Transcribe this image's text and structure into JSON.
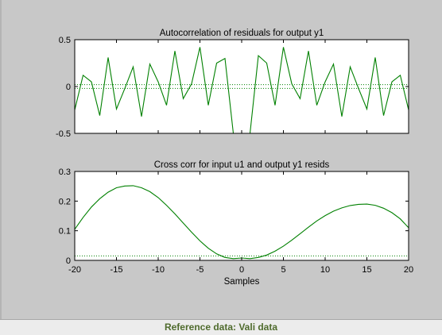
{
  "footer": {
    "reference_label": "Reference data:  Vali data"
  },
  "colors": {
    "figure_bg": "#c8c8c8",
    "axes_bg": "#ffffff",
    "series": "#008000",
    "confidence": "#008000",
    "footer_text": "#4f6b2d"
  },
  "chart_data": [
    {
      "type": "line",
      "title": "Autocorrelation of residuals for output y1",
      "xlabel": "",
      "ylabel": "",
      "xlim": [
        -20,
        20
      ],
      "ylim": [
        -0.5,
        0.5
      ],
      "yticks": [
        -0.5,
        0,
        0.5
      ],
      "yticklabels": [
        "-0.5",
        "0",
        "0.5"
      ],
      "show_xticklabels": false,
      "grid": false,
      "x": [
        -20,
        -19,
        -18,
        -17,
        -16,
        -15,
        -14,
        -13,
        -12,
        -11,
        -10,
        -9,
        -8,
        -7,
        -6,
        -5,
        -4,
        -3,
        -2,
        -1,
        0,
        1,
        2,
        3,
        4,
        5,
        6,
        7,
        8,
        9,
        10,
        11,
        12,
        13,
        14,
        15,
        16,
        17,
        18,
        19,
        20
      ],
      "series": [
        {
          "values": [
            -0.25,
            0.12,
            0.05,
            -0.31,
            0.31,
            -0.24,
            -0.02,
            0.21,
            -0.32,
            0.24,
            0.05,
            -0.2,
            0.38,
            -0.13,
            0.03,
            0.42,
            -0.2,
            0.25,
            0.3,
            -0.5,
            null,
            -0.5,
            0.33,
            0.25,
            -0.2,
            0.42,
            0.03,
            -0.13,
            0.38,
            -0.2,
            0.05,
            0.24,
            -0.32,
            0.21,
            -0.02,
            -0.24,
            0.31,
            -0.31,
            0.05,
            0.12,
            -0.25
          ]
        }
      ],
      "confidence_band": [
        -0.02,
        0.02
      ]
    },
    {
      "type": "line",
      "title": "Cross corr for input u1 and output y1 resids",
      "xlabel": "Samples",
      "ylabel": "",
      "xlim": [
        -20,
        20
      ],
      "ylim": [
        0,
        0.3
      ],
      "yticks": [
        0,
        0.1,
        0.2,
        0.3
      ],
      "yticklabels": [
        "0",
        "0.1",
        "0.2",
        "0.3"
      ],
      "xticks": [
        -20,
        -15,
        -10,
        -5,
        0,
        5,
        10,
        15,
        20
      ],
      "xticklabels": [
        "-20",
        "-15",
        "-10",
        "-5",
        "0",
        "5",
        "10",
        "15",
        "20"
      ],
      "grid": false,
      "x": [
        -20,
        -19,
        -18,
        -17,
        -16,
        -15,
        -14,
        -13,
        -12,
        -11,
        -10,
        -9,
        -8,
        -7,
        -6,
        -5,
        -4,
        -3,
        -2,
        -1,
        0,
        1,
        2,
        3,
        4,
        5,
        6,
        7,
        8,
        9,
        10,
        11,
        12,
        13,
        14,
        15,
        16,
        17,
        18,
        19,
        20
      ],
      "series": [
        {
          "values": [
            0.105,
            0.145,
            0.18,
            0.208,
            0.23,
            0.245,
            0.251,
            0.252,
            0.245,
            0.232,
            0.212,
            0.186,
            0.157,
            0.126,
            0.095,
            0.066,
            0.041,
            0.022,
            0.01,
            0.006,
            0.008,
            0.006,
            0.01,
            0.018,
            0.031,
            0.048,
            0.068,
            0.09,
            0.112,
            0.133,
            0.151,
            0.166,
            0.177,
            0.185,
            0.189,
            0.19,
            0.186,
            0.176,
            0.161,
            0.14,
            0.11
          ]
        }
      ],
      "confidence_band": [
        -0.015,
        0.015
      ]
    }
  ]
}
